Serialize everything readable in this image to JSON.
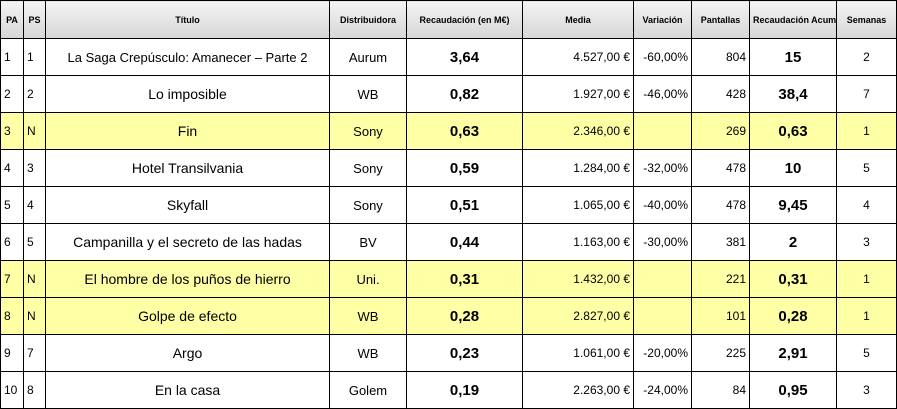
{
  "headers": {
    "pa": "PA",
    "ps": "PS",
    "titulo": "Título",
    "distribuidora": "Distribuidora",
    "recaudacion": "Recaudación (en M€)",
    "media": "Media",
    "variacion": "Variación",
    "pantallas": "Pantallas",
    "acumulada": "Recaudación Acumulada (en M€)",
    "semanas": "Semanas"
  },
  "rows": [
    {
      "pa": "1",
      "ps": "1",
      "titulo": "La Saga Crepúsculo: Amanecer – Parte 2",
      "distribuidora": "Aurum",
      "recaudacion": "3,64",
      "media": "4.527,00 €",
      "variacion": "-60,00%",
      "pantallas": "804",
      "acumulada": "15",
      "semanas": "2"
    },
    {
      "pa": "2",
      "ps": "2",
      "titulo": "Lo imposible",
      "distribuidora": "WB",
      "recaudacion": "0,82",
      "media": "1.927,00 €",
      "variacion": "-46,00%",
      "pantallas": "428",
      "acumulada": "38,4",
      "semanas": "7"
    },
    {
      "pa": "3",
      "ps": "N",
      "titulo": "Fin",
      "distribuidora": "Sony",
      "recaudacion": "0,63",
      "media": "2.346,00 €",
      "variacion": "",
      "pantallas": "269",
      "acumulada": "0,63",
      "semanas": "1"
    },
    {
      "pa": "4",
      "ps": "3",
      "titulo": "Hotel Transilvania",
      "distribuidora": "Sony",
      "recaudacion": "0,59",
      "media": "1.284,00 €",
      "variacion": "-32,00%",
      "pantallas": "478",
      "acumulada": "10",
      "semanas": "5"
    },
    {
      "pa": "5",
      "ps": "4",
      "titulo": "Skyfall",
      "distribuidora": "Sony",
      "recaudacion": "0,51",
      "media": "1.065,00 €",
      "variacion": "-40,00%",
      "pantallas": "478",
      "acumulada": "9,45",
      "semanas": "4"
    },
    {
      "pa": "6",
      "ps": "5",
      "titulo": "Campanilla y el secreto de las hadas",
      "distribuidora": "BV",
      "recaudacion": "0,44",
      "media": "1.163,00 €",
      "variacion": "-30,00%",
      "pantallas": "381",
      "acumulada": "2",
      "semanas": "3"
    },
    {
      "pa": "7",
      "ps": "N",
      "titulo": "El hombre de los puños de hierro",
      "distribuidora": "Uni.",
      "recaudacion": "0,31",
      "media": "1.432,00 €",
      "variacion": "",
      "pantallas": "221",
      "acumulada": "0,31",
      "semanas": "1"
    },
    {
      "pa": "8",
      "ps": "N",
      "titulo": "Golpe de efecto",
      "distribuidora": "WB",
      "recaudacion": "0,28",
      "media": "2.827,00 €",
      "variacion": "",
      "pantallas": "101",
      "acumulada": "0,28",
      "semanas": "1"
    },
    {
      "pa": "9",
      "ps": "7",
      "titulo": "Argo",
      "distribuidora": "WB",
      "recaudacion": "0,23",
      "media": "1.061,00 €",
      "variacion": "-20,00%",
      "pantallas": "225",
      "acumulada": "2,91",
      "semanas": "5"
    },
    {
      "pa": "10",
      "ps": "8",
      "titulo": "En la casa",
      "distribuidora": "Golem",
      "recaudacion": "0,19",
      "media": "2.263,00 €",
      "variacion": "-24,00%",
      "pantallas": "84",
      "acumulada": "0,95",
      "semanas": "3"
    }
  ],
  "colors": {
    "new_release_row": "#ffffa6",
    "header_bg": "#e4e4e4",
    "border": "#000000"
  }
}
